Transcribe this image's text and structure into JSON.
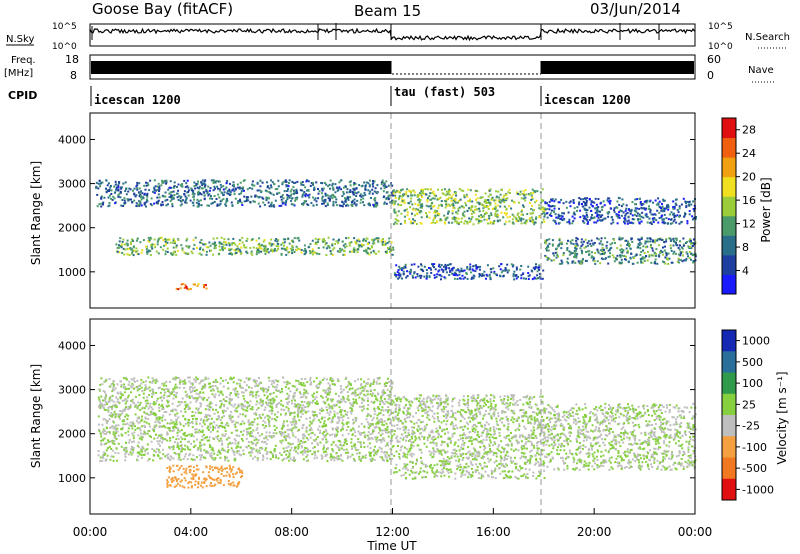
{
  "header": {
    "station": "Goose Bay (fitACF)",
    "beam": "Beam 15",
    "date": "03/Jun/2014"
  },
  "top_panels": {
    "nsky_label": "N.Sky",
    "nsky_ticks": [
      "10^5",
      "10^0"
    ],
    "nsearch_label": "N.Search",
    "nsearch_ticks": [
      "10^5",
      "10^0"
    ],
    "freq_label": "Freq.",
    "freq_unit": "[MHz]",
    "freq_ticks": [
      "18",
      "8"
    ],
    "nave_label": "Nave",
    "nave_ticks": [
      "60",
      "0"
    ],
    "cpid_label": "CPID",
    "cpid_segments": [
      {
        "label": "icescan 1200",
        "start_h": 0,
        "end_h": 12
      },
      {
        "label": "tau (fast) 503",
        "start_h": 12,
        "end_h": 18
      },
      {
        "label": "icescan 1200",
        "start_h": 18,
        "end_h": 24
      }
    ]
  },
  "x_axis": {
    "label": "Time UT",
    "ticks": [
      "00:00",
      "04:00",
      "08:00",
      "12:00",
      "16:00",
      "20:00",
      "00:00"
    ]
  },
  "power_panel": {
    "ylabel": "Slant Range [km]",
    "yticks": [
      "1000",
      "2000",
      "3000",
      "4000"
    ],
    "colorbar_label": "Power [dB]",
    "colorbar_ticks": [
      "4",
      "8",
      "12",
      "16",
      "20",
      "24",
      "28"
    ]
  },
  "velocity_panel": {
    "ylabel": "Slant Range [km]",
    "yticks": [
      "1000",
      "2000",
      "3000",
      "4000"
    ],
    "colorbar_label": "Velocity [m s⁻¹]",
    "colorbar_ticks": [
      "1000",
      "500",
      "100",
      "25",
      "-25",
      "-100",
      "-500",
      "-1000"
    ]
  },
  "chart_data": [
    {
      "type": "heatmap",
      "title": "Goose Bay (fitACF) Beam 15 03/Jun/2014",
      "xlabel": "Time UT",
      "ylabel": "Slant Range [km]",
      "xlim_hours": [
        0,
        24
      ],
      "ylim_km": [
        180,
        4600
      ],
      "value_label": "Power [dB]",
      "value_range": [
        0,
        30
      ],
      "color_levels": [
        "#1a1aff",
        "#1f3fa0",
        "#2a6f8a",
        "#4a9a6a",
        "#9bcc3a",
        "#f0e020",
        "#f0a010",
        "#f06010",
        "#e01010"
      ],
      "regions": [
        {
          "t": [
            0.2,
            12.0
          ],
          "range_km": [
            2500,
            3100
          ],
          "db": 8
        },
        {
          "t": [
            1.0,
            12.0
          ],
          "range_km": [
            1400,
            1800
          ],
          "db": 13
        },
        {
          "t": [
            12.0,
            18.0
          ],
          "range_km": [
            850,
            1200
          ],
          "db": 6
        },
        {
          "t": [
            12.0,
            18.0
          ],
          "range_km": [
            2100,
            2900
          ],
          "db": 14
        },
        {
          "t": [
            18.0,
            24.0
          ],
          "range_km": [
            1200,
            1800
          ],
          "db": 10
        },
        {
          "t": [
            18.0,
            24.0
          ],
          "range_km": [
            2100,
            2700
          ],
          "db": 6
        },
        {
          "t": [
            3.3,
            4.6
          ],
          "range_km": [
            620,
            760
          ],
          "db": 24
        }
      ]
    },
    {
      "type": "heatmap",
      "title": "",
      "xlabel": "Time UT",
      "ylabel": "Slant Range [km]",
      "xlim_hours": [
        0,
        24
      ],
      "ylim_km": [
        180,
        4600
      ],
      "value_label": "Velocity [m s-1]",
      "value_range": [
        -1000,
        1000
      ],
      "bins": [
        "1000",
        "500",
        "100",
        "25",
        "-25",
        "-100",
        "-500",
        "-1000"
      ],
      "bin_colors": [
        "#1428b4",
        "#2a6e9a",
        "#2f9a4a",
        "#86d040",
        "#bebebe",
        "#f4a040",
        "#f07820",
        "#e01010"
      ],
      "regions": [
        {
          "t": [
            0.3,
            12.0
          ],
          "range_km": [
            1400,
            3300
          ],
          "velocity": 0
        },
        {
          "t": [
            3.0,
            6.0
          ],
          "range_km": [
            800,
            1300
          ],
          "velocity": -200
        },
        {
          "t": [
            12.0,
            18.0
          ],
          "range_km": [
            1000,
            2900
          ],
          "velocity": 0
        },
        {
          "t": [
            18.0,
            24.0
          ],
          "range_km": [
            1200,
            2700
          ],
          "velocity": 0
        }
      ]
    }
  ]
}
